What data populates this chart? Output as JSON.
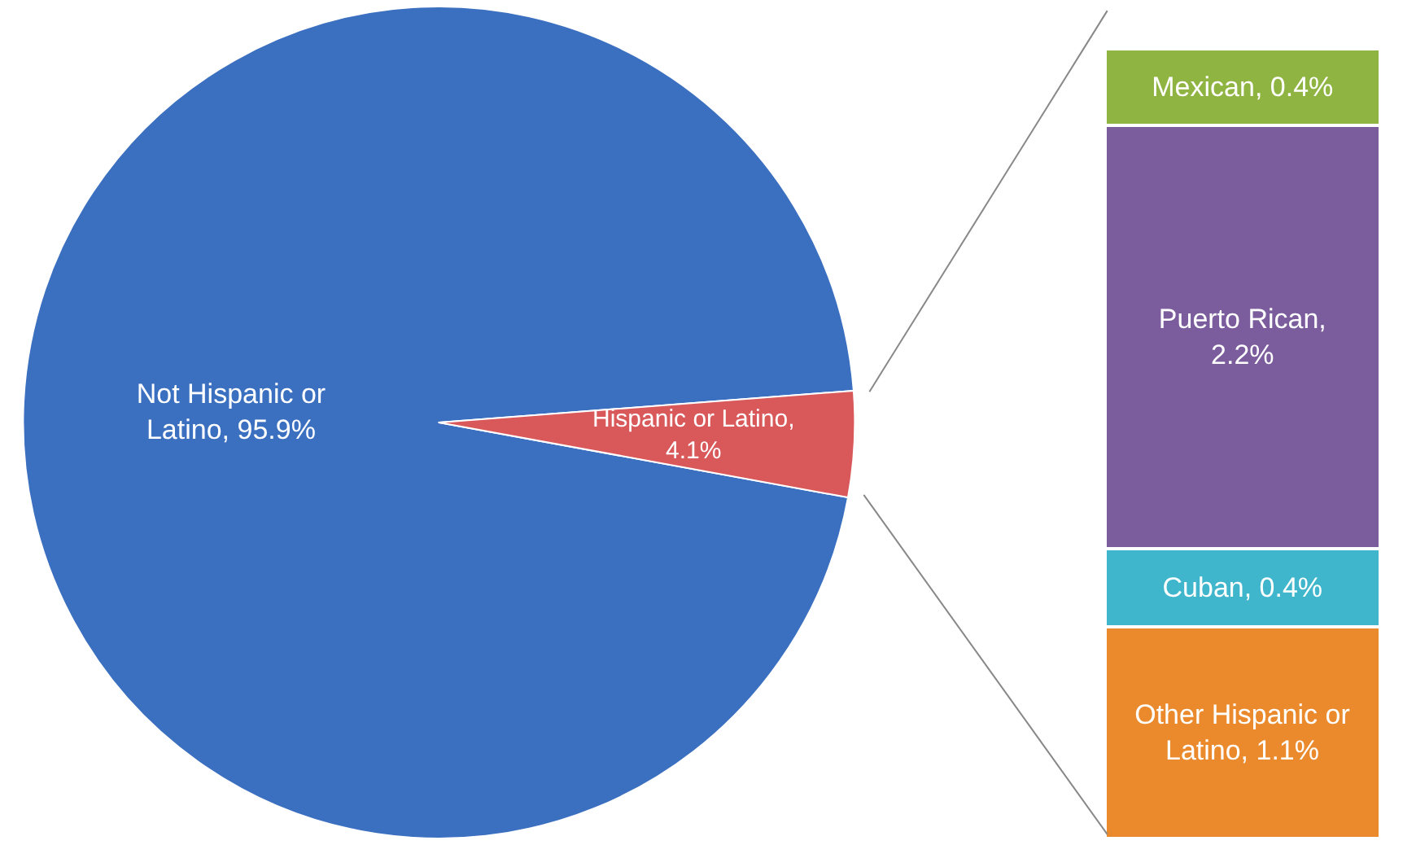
{
  "chart_data": [
    {
      "type": "pie",
      "categories": [
        null,
        null
      ],
      "values": [
        95.9,
        4.1
      ],
      "colors": [
        "#3b6fc0",
        "#d9585a"
      ],
      "value_labels": [
        "Not Hispanic or Latino, 95.9%",
        "Hispanic or Latino, 4.1%"
      ]
    },
    {
      "type": "bar",
      "stacked": true,
      "categories": [
        null
      ],
      "tick_labels": false,
      "series": [
        {
          "color": "#ea8a2c",
          "values": [
            1.1
          ],
          "value_labels": [
            "Other Hispanic or Latino, 1.1%"
          ]
        },
        {
          "color": "#3fb6cc",
          "values": [
            0.4
          ],
          "value_labels": [
            "Cuban, 0.4%"
          ]
        },
        {
          "color": "#7b5c9c",
          "values": [
            2.2
          ],
          "value_labels": [
            "Puerto Rican, 2.2%"
          ]
        },
        {
          "color": "#8fb442",
          "values": [
            0.4
          ],
          "value_labels": [
            "Mexican, 0.4%"
          ]
        }
      ]
    }
  ]
}
